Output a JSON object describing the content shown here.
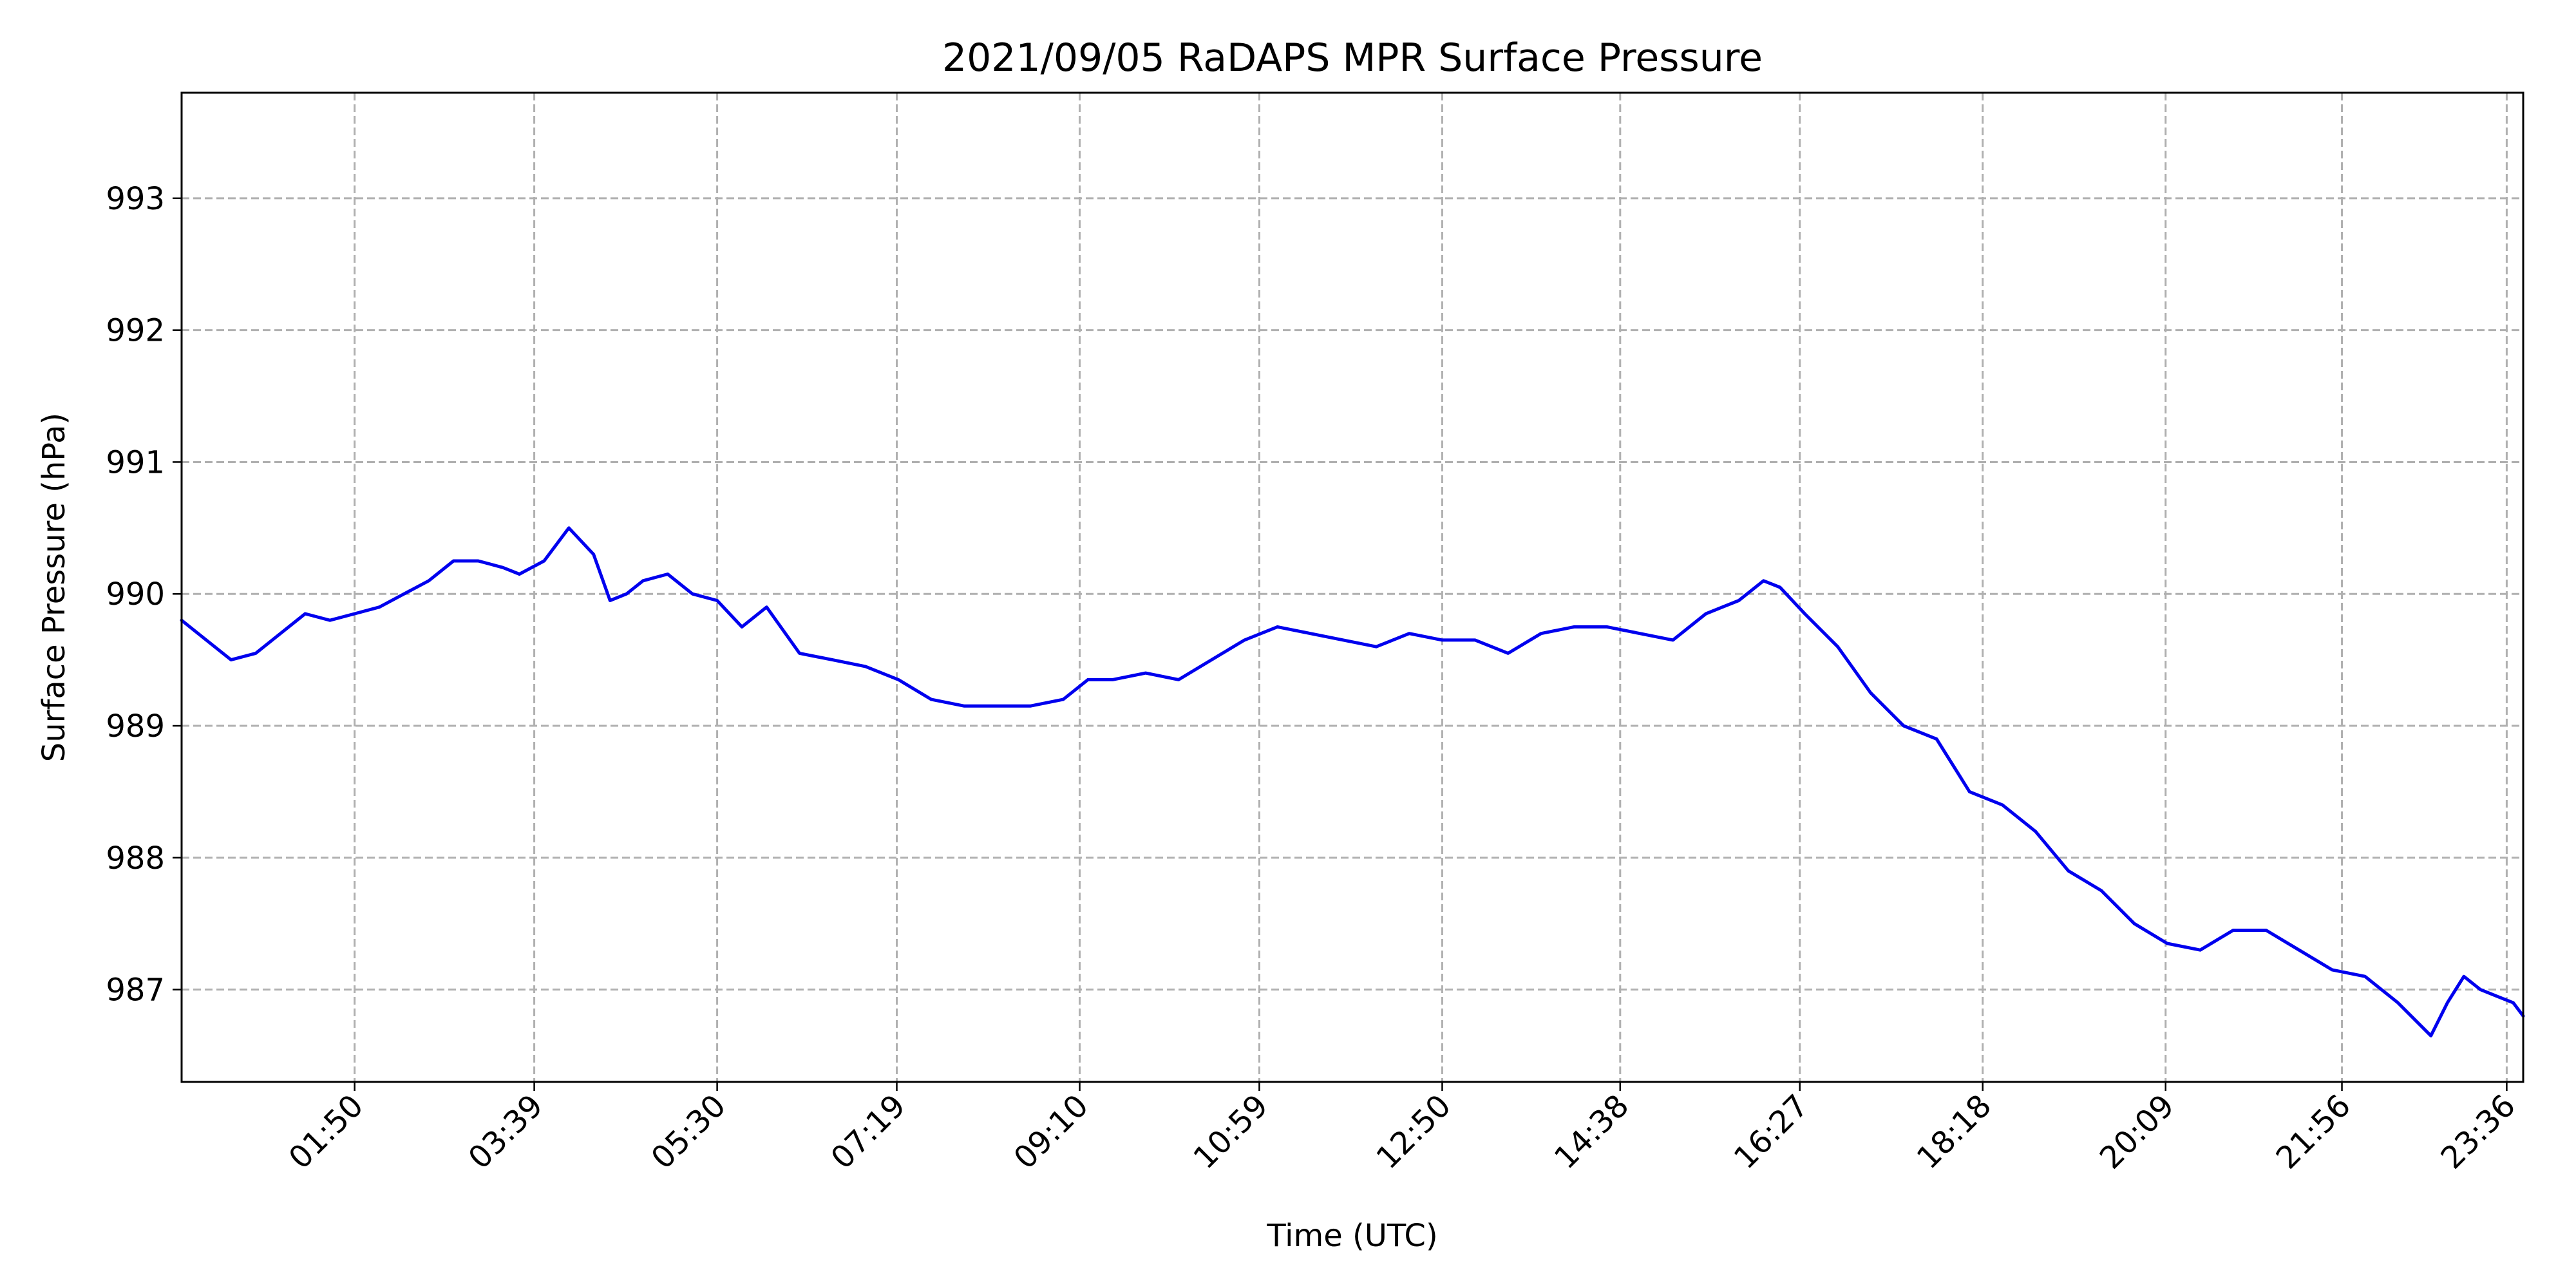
{
  "chart_data": {
    "type": "line",
    "title": "2021/09/05 RaDAPS MPR Surface Pressure",
    "xlabel": "Time (UTC)",
    "ylabel": "Surface Pressure (hPa)",
    "xlim": [
      "00:05",
      "23:46"
    ],
    "ylim": [
      986.3,
      993.8
    ],
    "grid": true,
    "x_ticks": [
      "01:50",
      "03:39",
      "05:30",
      "07:19",
      "09:10",
      "10:59",
      "12:50",
      "14:38",
      "16:27",
      "18:18",
      "20:09",
      "21:56",
      "23:36"
    ],
    "y_ticks": [
      993,
      992,
      991,
      990,
      989,
      988,
      987
    ],
    "series": [
      {
        "color": "#0000ee",
        "x": [
          "00:05",
          "00:20",
          "00:35",
          "00:50",
          "01:05",
          "01:20",
          "01:35",
          "01:50",
          "02:05",
          "02:20",
          "02:35",
          "02:50",
          "03:05",
          "03:20",
          "03:30",
          "03:45",
          "04:00",
          "04:15",
          "04:25",
          "04:35",
          "04:45",
          "05:00",
          "05:15",
          "05:30",
          "05:45",
          "06:00",
          "06:20",
          "06:40",
          "07:00",
          "07:20",
          "07:40",
          "08:00",
          "08:20",
          "08:40",
          "09:00",
          "09:15",
          "09:30",
          "09:50",
          "10:10",
          "10:30",
          "10:50",
          "11:10",
          "11:30",
          "11:50",
          "12:10",
          "12:30",
          "12:50",
          "13:10",
          "13:30",
          "13:50",
          "14:10",
          "14:30",
          "14:50",
          "15:10",
          "15:30",
          "15:50",
          "16:05",
          "16:15",
          "16:30",
          "16:50",
          "17:10",
          "17:30",
          "17:50",
          "18:10",
          "18:30",
          "18:50",
          "19:10",
          "19:30",
          "19:50",
          "20:10",
          "20:30",
          "20:50",
          "21:10",
          "21:30",
          "21:50",
          "22:10",
          "22:30",
          "22:50",
          "23:00",
          "23:10",
          "23:20",
          "23:30",
          "23:40",
          "23:46"
        ],
        "y": [
          989.8,
          989.65,
          989.5,
          989.55,
          989.7,
          989.85,
          989.8,
          989.85,
          989.9,
          990.0,
          990.1,
          990.25,
          990.25,
          990.2,
          990.15,
          990.25,
          990.5,
          990.3,
          989.95,
          990.0,
          990.1,
          990.15,
          990.0,
          989.95,
          989.75,
          989.9,
          989.55,
          989.5,
          989.45,
          989.35,
          989.2,
          989.15,
          989.15,
          989.15,
          989.2,
          989.35,
          989.35,
          989.4,
          989.35,
          989.5,
          989.65,
          989.75,
          989.7,
          989.65,
          989.6,
          989.7,
          989.65,
          989.65,
          989.55,
          989.7,
          989.75,
          989.75,
          989.7,
          989.65,
          989.85,
          989.95,
          990.1,
          990.05,
          989.85,
          989.6,
          989.25,
          989.0,
          988.9,
          988.5,
          988.4,
          988.2,
          987.9,
          987.75,
          987.5,
          987.35,
          987.3,
          987.45,
          987.45,
          987.3,
          987.15,
          987.1,
          986.9,
          986.65,
          986.9,
          987.1,
          987.0,
          986.95,
          986.9,
          986.8
        ]
      }
    ]
  }
}
